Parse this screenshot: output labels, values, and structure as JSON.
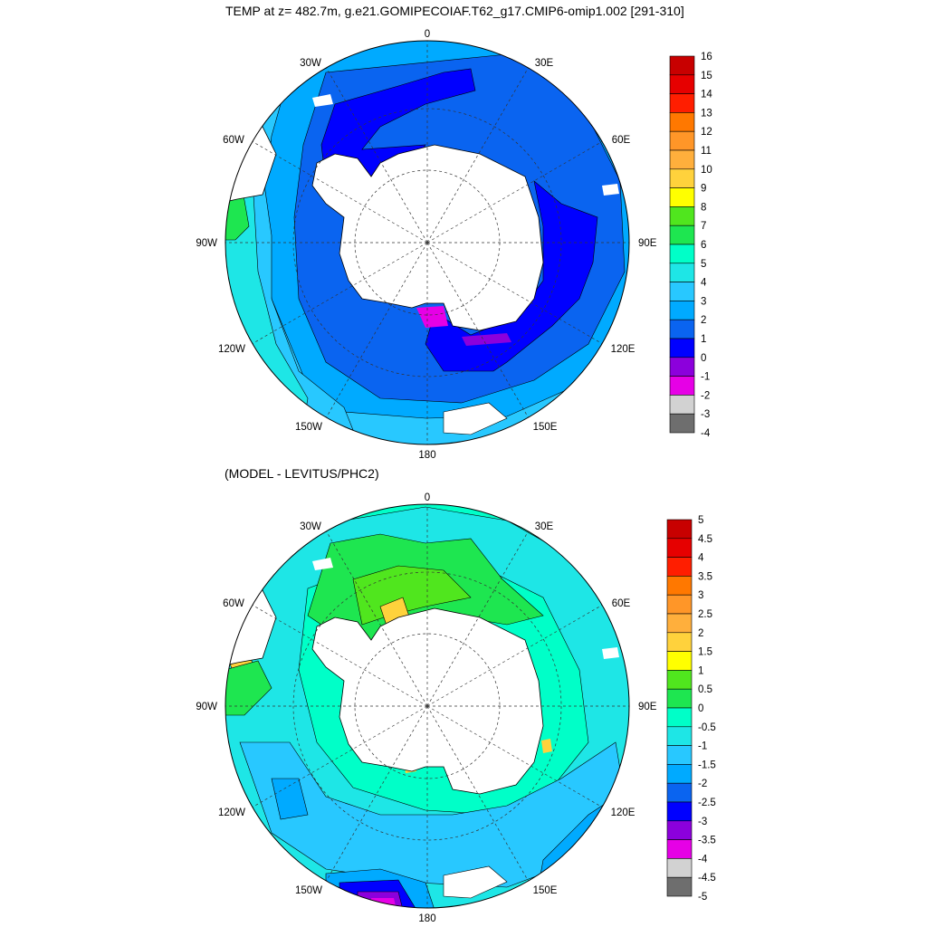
{
  "top_map": {
    "title": "TEMP at z= 482.7m, g.e21.GOMIPECOIAF.T62_g17.CMIP6-omip1.002 [291-310]",
    "lon_labels": [
      "0",
      "30E",
      "60E",
      "90E",
      "120E",
      "150E",
      "180",
      "150W",
      "120W",
      "90W",
      "60W",
      "30W"
    ],
    "colorbar": {
      "labels": [
        "16",
        "15",
        "14",
        "13",
        "12",
        "11",
        "10",
        "9",
        "8",
        "7",
        "6",
        "5",
        "4",
        "3",
        "2",
        "1",
        "0",
        "-1",
        "-2",
        "-3",
        "-4"
      ],
      "colors": [
        "#c80000",
        "#e60000",
        "#ff1e00",
        "#ff7800",
        "#ff9628",
        "#ffaf3c",
        "#ffd23c",
        "#ffff00",
        "#50e61e",
        "#1ee650",
        "#00ffc8",
        "#1ee6e6",
        "#28c8ff",
        "#00aaff",
        "#0a64f0",
        "#0000ff",
        "#8c00dc",
        "#e600e6",
        "#d2d2d2",
        "#6e6e6e"
      ]
    }
  },
  "bottom_map": {
    "title": "(MODEL - LEVITUS/PHC2)",
    "lon_labels": [
      "0",
      "30E",
      "60E",
      "90E",
      "120E",
      "150E",
      "180",
      "150W",
      "120W",
      "90W",
      "60W",
      "30W"
    ],
    "colorbar": {
      "labels": [
        "5",
        "4.5",
        "4",
        "3.5",
        "3",
        "2.5",
        "2",
        "1.5",
        "1",
        "0.5",
        "0",
        "-0.5",
        "-1",
        "-1.5",
        "-2",
        "-2.5",
        "-3",
        "-3.5",
        "-4",
        "-4.5",
        "-5"
      ],
      "colors": [
        "#c80000",
        "#e60000",
        "#ff1e00",
        "#ff7800",
        "#ff9628",
        "#ffaf3c",
        "#ffd23c",
        "#ffff00",
        "#50e61e",
        "#1ee650",
        "#00ffc8",
        "#1ee6e6",
        "#28c8ff",
        "#00aaff",
        "#0a64f0",
        "#0000ff",
        "#8c00dc",
        "#e600e6",
        "#d2d2d2",
        "#6e6e6e"
      ]
    }
  }
}
